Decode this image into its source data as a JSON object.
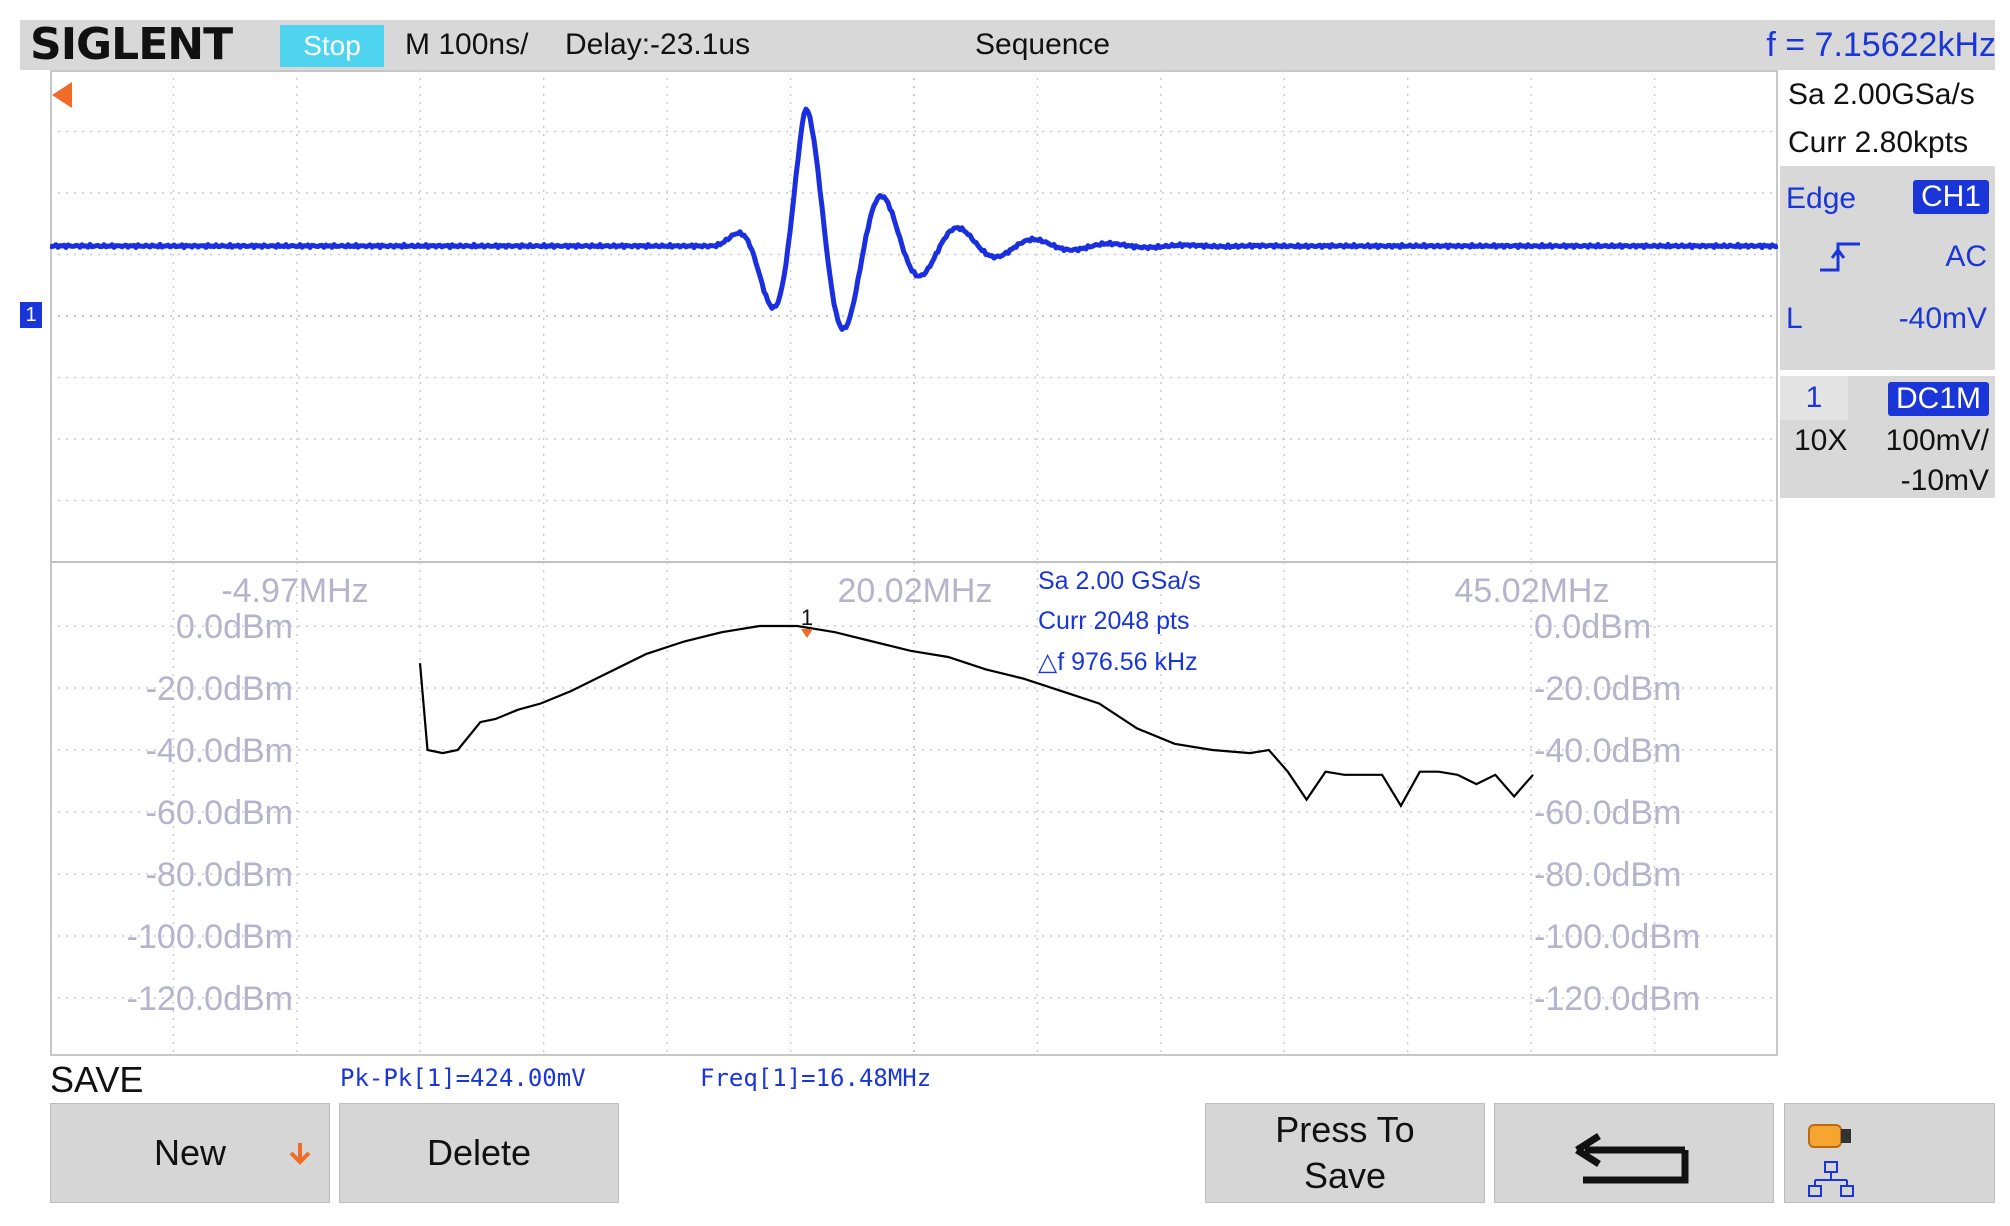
{
  "topbar": {
    "brand": "SIGLENT",
    "run_state": "Stop",
    "timebase": "M 100ns/",
    "delay": "Delay:-23.1us",
    "trigger_mode": "Sequence",
    "frequency": "f = 7.15622kHz"
  },
  "right_panel": {
    "sample_rate": "Sa 2.00GSa/s",
    "curr_points": "Curr 2.80kpts",
    "trigger": {
      "type": "Edge",
      "source": "CH1",
      "coupling": "AC",
      "level_label": "L",
      "level": "-40mV"
    },
    "channel": {
      "number": "1",
      "coupling_impedance": "DC1M",
      "probe": "10X",
      "scale": "100mV/",
      "offset": "-10mV"
    }
  },
  "time_domain": {
    "channel_marker": "1"
  },
  "fft": {
    "freq_labels": [
      "-4.97MHz",
      "20.02MHz",
      "45.02MHz"
    ],
    "db_labels": [
      "0.0dBm",
      "-20.0dBm",
      "-40.0dBm",
      "-60.0dBm",
      "-80.0dBm",
      "-100.0dBm",
      "-120.0dBm"
    ],
    "info": {
      "sample_rate": "Sa 2.00 GSa/s",
      "curr": "Curr 2048 pts",
      "delta_f": "△f 976.56 kHz"
    },
    "peak_marker": "1",
    "trace": [
      [
        0.0,
        -12
      ],
      [
        0.2,
        -40
      ],
      [
        0.6,
        -41
      ],
      [
        1.0,
        -40
      ],
      [
        1.6,
        -31
      ],
      [
        2.0,
        -30
      ],
      [
        2.6,
        -27
      ],
      [
        3.2,
        -25
      ],
      [
        4.0,
        -21
      ],
      [
        5.0,
        -15
      ],
      [
        6.0,
        -9
      ],
      [
        7.0,
        -5
      ],
      [
        8.0,
        -2
      ],
      [
        9.0,
        0
      ],
      [
        10.0,
        0
      ],
      [
        11.0,
        -2
      ],
      [
        12.0,
        -5
      ],
      [
        13.0,
        -8
      ],
      [
        14.0,
        -10
      ],
      [
        15.0,
        -14
      ],
      [
        16.0,
        -17
      ],
      [
        17.0,
        -21
      ],
      [
        18.0,
        -25
      ],
      [
        19.0,
        -33
      ],
      [
        20.0,
        -38
      ],
      [
        21.0,
        -40
      ],
      [
        22.0,
        -41
      ],
      [
        22.5,
        -40
      ],
      [
        23.0,
        -47
      ],
      [
        23.5,
        -56
      ],
      [
        24.0,
        -47
      ],
      [
        24.5,
        -48
      ],
      [
        25.0,
        -48
      ],
      [
        25.5,
        -48
      ],
      [
        26.0,
        -58
      ],
      [
        26.5,
        -47
      ],
      [
        27.0,
        -47
      ],
      [
        27.5,
        -48
      ],
      [
        28.0,
        -51
      ],
      [
        28.5,
        -48
      ],
      [
        29.0,
        -55
      ],
      [
        29.5,
        -48
      ]
    ]
  },
  "bottom": {
    "menu_title": "SAVE",
    "measurements": [
      "Pk-Pk[1]=424.00mV",
      "Freq[1]=16.48MHz"
    ],
    "softkeys": {
      "new": "New",
      "delete": "Delete",
      "press_to_save_1": "Press To",
      "press_to_save_2": "Save"
    }
  },
  "colors": {
    "waveform": "#1a2fe0",
    "fft_trace": "#000000",
    "grid": "#c8c8d8",
    "accent_blue": "#1a35d8",
    "cyan": "#4fd4f0",
    "orange": "#f06a28"
  }
}
